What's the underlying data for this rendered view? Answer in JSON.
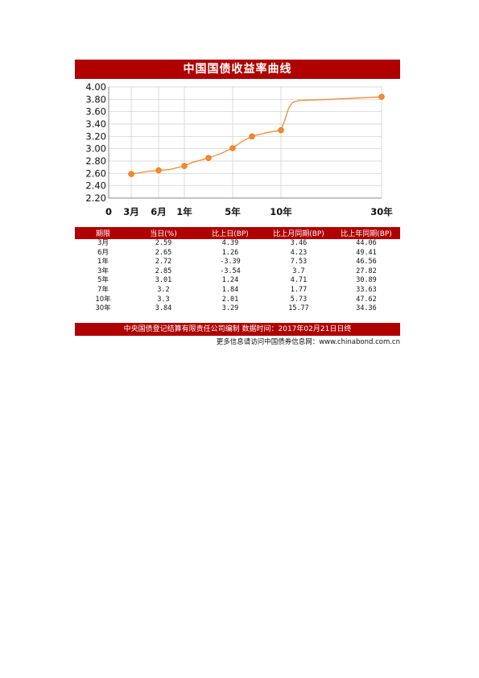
{
  "title": "中国国债收益率曲线",
  "chart_data": {
    "type": "line",
    "y_ticks": [
      "4.00",
      "3.80",
      "3.60",
      "3.40",
      "3.20",
      "3.00",
      "2.80",
      "2.60",
      "2.40",
      "2.20"
    ],
    "ylim": [
      2.2,
      4.0
    ],
    "x_ticks": [
      {
        "label": "0",
        "x": 0
      },
      {
        "label": "3月",
        "x": 0.25
      },
      {
        "label": "6月",
        "x": 0.5
      },
      {
        "label": "1年",
        "x": 1
      },
      {
        "label": "5年",
        "x": 5
      },
      {
        "label": "10年",
        "x": 10
      },
      {
        "label": "30年",
        "x": 30
      }
    ],
    "points": [
      {
        "x": 0.25,
        "y": 2.59
      },
      {
        "x": 0.5,
        "y": 2.65
      },
      {
        "x": 1,
        "y": 2.72
      },
      {
        "x": 3,
        "y": 2.85
      },
      {
        "x": 5,
        "y": 3.01
      },
      {
        "x": 7,
        "y": 3.2
      },
      {
        "x": 10,
        "y": 3.3
      },
      {
        "x": 30,
        "y": 3.84
      }
    ],
    "curve": [
      {
        "x": 0.25,
        "y": 2.59
      },
      {
        "x": 0.4,
        "y": 2.63
      },
      {
        "x": 0.5,
        "y": 2.65
      },
      {
        "x": 0.7,
        "y": 2.66
      },
      {
        "x": 1,
        "y": 2.72
      },
      {
        "x": 1.7,
        "y": 2.78
      },
      {
        "x": 3,
        "y": 2.85
      },
      {
        "x": 4,
        "y": 2.92
      },
      {
        "x": 5,
        "y": 3.01
      },
      {
        "x": 6,
        "y": 3.12
      },
      {
        "x": 7,
        "y": 3.2
      },
      {
        "x": 8.5,
        "y": 3.26
      },
      {
        "x": 10,
        "y": 3.3
      },
      {
        "x": 10.7,
        "y": 3.45
      },
      {
        "x": 11.5,
        "y": 3.65
      },
      {
        "x": 12.3,
        "y": 3.75
      },
      {
        "x": 13.5,
        "y": 3.78
      },
      {
        "x": 20,
        "y": 3.8
      },
      {
        "x": 30,
        "y": 3.84
      }
    ],
    "color": "#f28a2e"
  },
  "table": {
    "headers": [
      "期限",
      "当日(%)",
      "比上日(BP)",
      "比上月同期(BP)",
      "比上年同期(BP)"
    ],
    "rows": [
      [
        "3月",
        "2.59",
        "4.39",
        "3.46",
        "44.06"
      ],
      [
        "6月",
        "2.65",
        "1.26",
        "4.23",
        "49.41"
      ],
      [
        "1年",
        "2.72",
        "-3.39",
        "7.53",
        "46.56"
      ],
      [
        "3年",
        "2.85",
        "-3.54",
        "3.7",
        "27.82"
      ],
      [
        "5年",
        "3.01",
        "1.24",
        "4.71",
        "30.89"
      ],
      [
        "7年",
        "3.2",
        "1.84",
        "1.77",
        "33.63"
      ],
      [
        "10年",
        "3.3",
        "2.01",
        "5.73",
        "47.62"
      ],
      [
        "30年",
        "3.84",
        "3.29",
        "15.77",
        "34.36"
      ]
    ]
  },
  "footer": "中央国债登记结算有限责任公司编制  数据时间：2017年02月21日日终",
  "more_info": "更多信息请访问中国债券信息网：www.chinabond.com.cn"
}
